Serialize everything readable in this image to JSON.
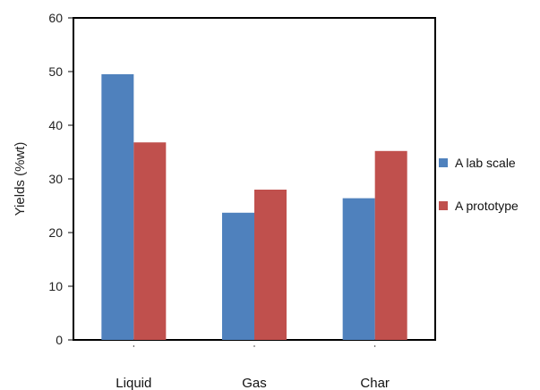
{
  "chart_data": {
    "type": "bar",
    "title": "",
    "xlabel": "",
    "ylabel": "Yields (%wt)",
    "ylim": [
      0,
      60
    ],
    "yticks": [
      0,
      10,
      20,
      30,
      40,
      50,
      60
    ],
    "categories": [
      "Liquid",
      "Gas",
      "Char"
    ],
    "series": [
      {
        "name": "A lab scale",
        "values": [
          49.5,
          23.7,
          26.4
        ],
        "color": "#4f81bd"
      },
      {
        "name": "A prototype",
        "values": [
          36.8,
          28.0,
          35.2
        ],
        "color": "#c0504d"
      }
    ],
    "grid": false,
    "legend_position": "right"
  }
}
